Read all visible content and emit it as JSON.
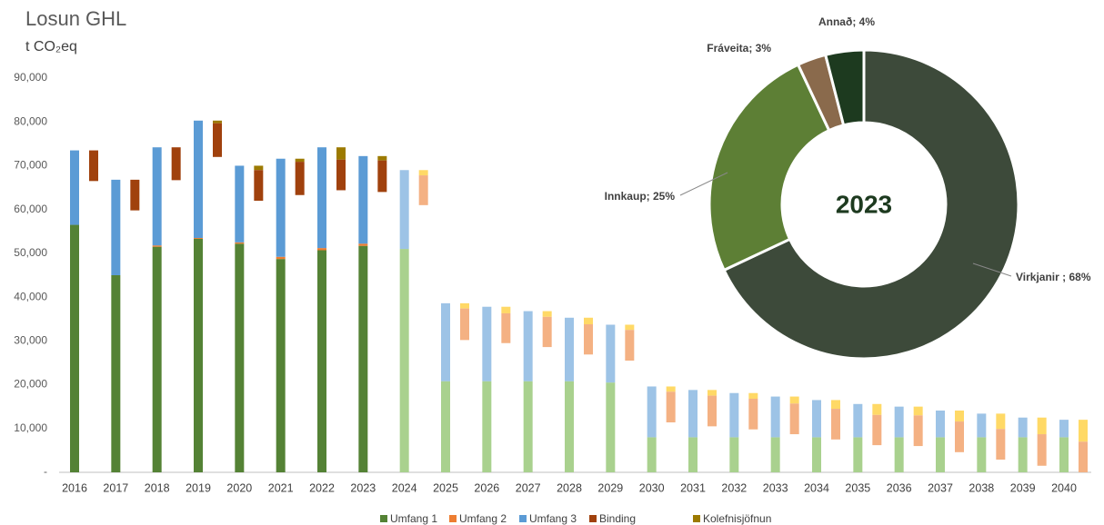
{
  "chart_data": [
    {
      "type": "stacked_waterfall_bar",
      "title": "Losun GHL",
      "subtitle": "t CO₂eq",
      "categories": [
        "2016",
        "2017",
        "2018",
        "2019",
        "2020",
        "2021",
        "2022",
        "2023",
        "2024",
        "2025",
        "2026",
        "2027",
        "2028",
        "2029",
        "2030",
        "2031",
        "2032",
        "2033",
        "2034",
        "2035",
        "2036",
        "2037",
        "2038",
        "2039",
        "2040"
      ],
      "projected_from": "2024",
      "series": [
        {
          "name": "Umfang 1",
          "group": "emissions",
          "color": "#548235",
          "projected_color": "#a9d18e",
          "values": [
            56500,
            45000,
            51500,
            53300,
            52200,
            48700,
            50700,
            51700,
            51000,
            20800,
            20800,
            20800,
            20800,
            20500,
            8000,
            8000,
            8000,
            8000,
            8000,
            8000,
            8000,
            8000,
            8000,
            8000,
            8000
          ]
        },
        {
          "name": "Umfang 2",
          "group": "emissions",
          "color": "#ed7d31",
          "projected_color": "#f4b183",
          "values": [
            0,
            0,
            300,
            200,
            300,
            500,
            500,
            500,
            0,
            0,
            0,
            0,
            0,
            0,
            0,
            0,
            0,
            0,
            0,
            0,
            0,
            0,
            0,
            0,
            0
          ]
        },
        {
          "name": "Umfang 3",
          "group": "emissions",
          "color": "#5b9bd5",
          "projected_color": "#9dc3e6",
          "values": [
            17000,
            21800,
            22400,
            26800,
            17500,
            22400,
            23000,
            20000,
            18000,
            17800,
            17000,
            16000,
            14500,
            13200,
            11600,
            10800,
            10100,
            9300,
            8500,
            7600,
            7000,
            6100,
            5400,
            4500,
            4000
          ]
        },
        {
          "name": "Binding",
          "group": "offsets",
          "color": "#a0410d",
          "projected_color": "#f4b183",
          "values": [
            7000,
            7000,
            7500,
            7700,
            7000,
            7600,
            7000,
            7200,
            6800,
            7200,
            6800,
            6900,
            6900,
            7000,
            7000,
            7000,
            7000,
            7000,
            7000,
            6900,
            7000,
            7000,
            7000,
            7200,
            7000
          ]
        },
        {
          "name": "Kolefnisjöfnun",
          "group": "offsets",
          "color": "#9c7a00",
          "projected_color": "#ffd966",
          "values": [
            0,
            0,
            0,
            600,
            1000,
            700,
            2800,
            1000,
            1200,
            1200,
            1500,
            1300,
            1500,
            1200,
            1200,
            1300,
            1300,
            1600,
            2000,
            2500,
            2000,
            2500,
            3500,
            3800,
            5000
          ]
        }
      ],
      "ylim": [
        0,
        90000
      ],
      "yticks": [
        {
          "value": 0,
          "label": "-"
        },
        {
          "value": 10000,
          "label": "10,000"
        },
        {
          "value": 20000,
          "label": "20,000"
        },
        {
          "value": 30000,
          "label": "30,000"
        },
        {
          "value": 40000,
          "label": "40,000"
        },
        {
          "value": 50000,
          "label": "50,000"
        },
        {
          "value": 60000,
          "label": "60,000"
        },
        {
          "value": 70000,
          "label": "70,000"
        },
        {
          "value": 80000,
          "label": "80,000"
        },
        {
          "value": 90000,
          "label": "90,000"
        }
      ],
      "grid": false,
      "legend": "bottom"
    },
    {
      "type": "donut",
      "center_label": "2023",
      "categories": [
        "Virkjanir",
        "Innkaup",
        "Fráveita",
        "Annað"
      ],
      "values": [
        68,
        25,
        3,
        4
      ],
      "value_labels": [
        "Virkjanir ; 68%",
        "Innkaup; 25%",
        "Fráveita; 3%",
        "Annað; 4%"
      ],
      "colors": [
        "#3d4a3a",
        "#5d7f35",
        "#8a6a4c",
        "#1d3a1f"
      ]
    }
  ]
}
